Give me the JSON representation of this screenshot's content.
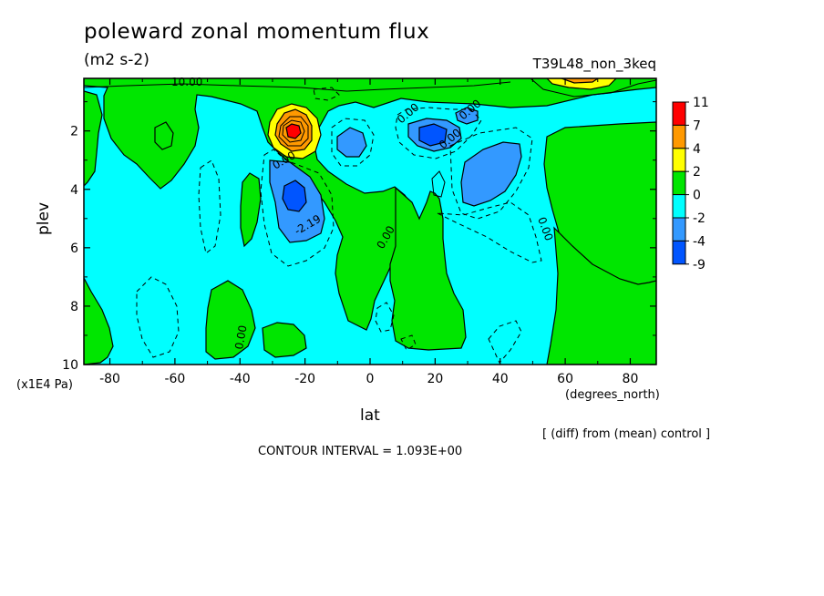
{
  "chart_data": {
    "type": "heatmap",
    "title": "poleward zonal momentum flux",
    "subtitle": "(m2 s-2)",
    "run_label": "T39L48_non_3keq",
    "xlabel": "lat",
    "x_units": "(degrees_north)",
    "ylabel": "plev",
    "y_units": "(x1E4 Pa)",
    "xlim": [
      -88,
      88
    ],
    "ylim": [
      10,
      0.2
    ],
    "x_ticks": [
      "-80",
      "-60",
      "-40",
      "-20",
      "0",
      "20",
      "40",
      "60",
      "80"
    ],
    "y_ticks": [
      "2",
      "4",
      "6",
      "8",
      "10"
    ],
    "note": "[ (diff) from (mean) control ]",
    "contour_interval_text": "CONTOUR INTERVAL = 1.093E+00",
    "colorbar": {
      "labels": [
        "11",
        "7",
        "4",
        "2",
        "0",
        "-2",
        "-4",
        "-9"
      ],
      "colors": [
        "#ff0000",
        "#ff9900",
        "#ffff00",
        "#00e600",
        "#00ffff",
        "#3399ff",
        "#0055ff"
      ]
    },
    "contour_labels": [
      "10.00",
      "0.00",
      "0.00",
      "0.00",
      "0.00",
      "-2.19",
      "0.00",
      "0.00",
      "0.00"
    ],
    "features": [
      {
        "kind": "max",
        "lat": -24,
        "plev": 2.0,
        "value": 11
      },
      {
        "kind": "min",
        "lat": -24,
        "plev": 4.2,
        "value": -5
      },
      {
        "kind": "min",
        "lat": 20,
        "plev": 2.1,
        "value": -4
      },
      {
        "kind": "min",
        "lat": 36,
        "plev": 3.6,
        "value": -4
      },
      {
        "kind": "max",
        "lat": 64,
        "plev": 0.4,
        "value": 4
      }
    ]
  }
}
